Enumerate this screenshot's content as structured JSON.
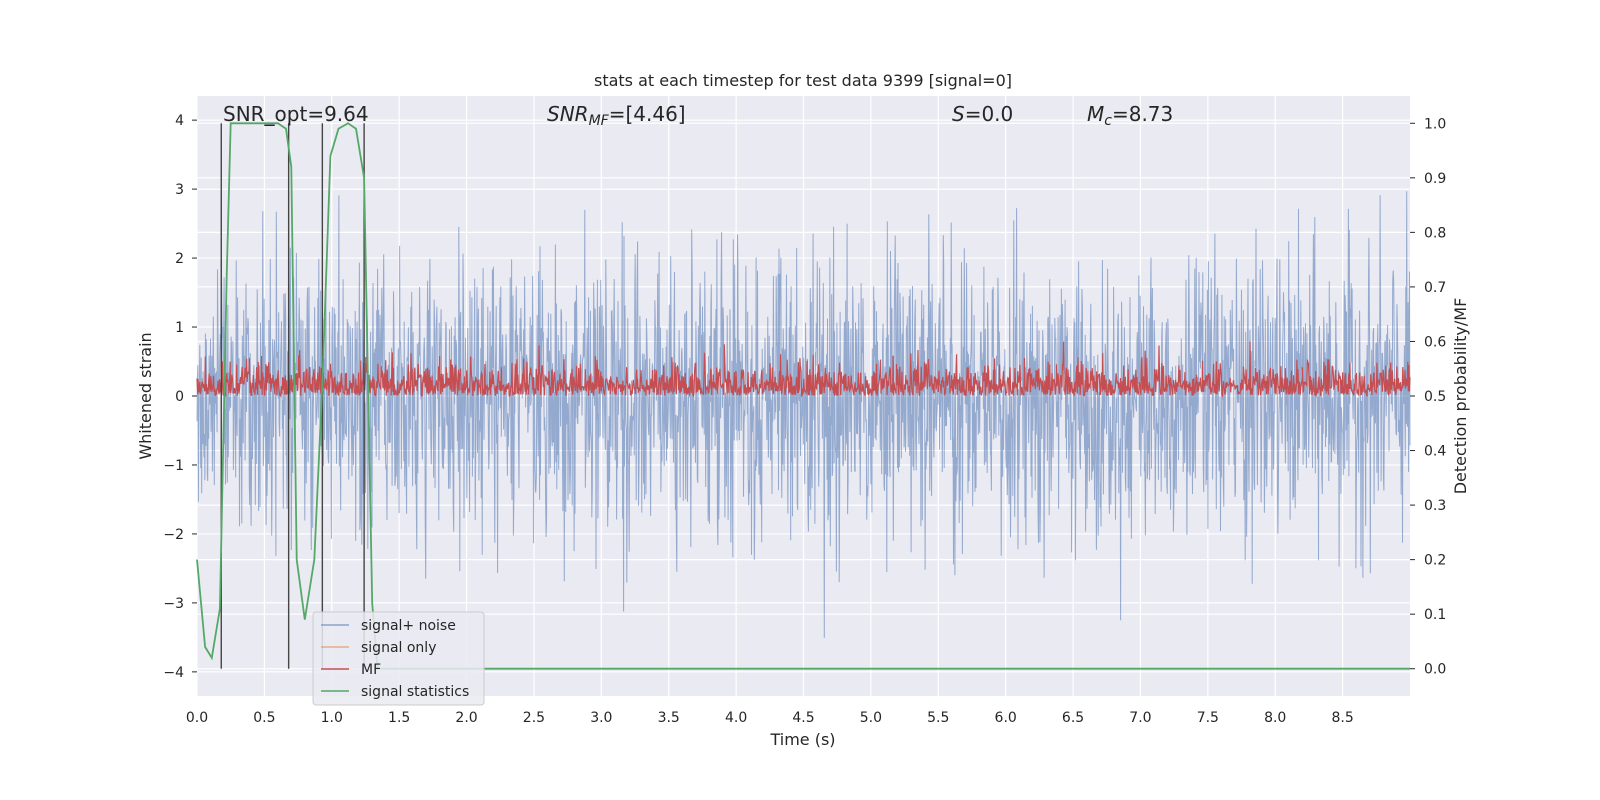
{
  "chart_data": {
    "type": "line",
    "title": "stats at each timestep for test data 9399 [signal=0]",
    "xlabel": "Time (s)",
    "ylabel_left": "Whitened strain",
    "ylabel_right": "Detection probability/MF",
    "xlim": [
      0.0,
      9.0
    ],
    "ylim_left": [
      -4.35,
      4.35
    ],
    "ylim_right": [
      -0.05,
      1.05
    ],
    "xticks": [
      0.0,
      0.5,
      1.0,
      1.5,
      2.0,
      2.5,
      3.0,
      3.5,
      4.0,
      4.5,
      5.0,
      5.5,
      6.0,
      6.5,
      7.0,
      7.5,
      8.0,
      8.5
    ],
    "xtick_labels": [
      "0.0",
      "0.5",
      "1.0",
      "1.5",
      "2.0",
      "2.5",
      "3.0",
      "3.5",
      "4.0",
      "4.5",
      "5.0",
      "5.5",
      "6.0",
      "6.5",
      "7.0",
      "7.5",
      "8.0",
      "8.5"
    ],
    "yticks_left": [
      -4,
      -3,
      -2,
      -1,
      0,
      1,
      2,
      3,
      4
    ],
    "ytick_labels_left": [
      "−4",
      "−3",
      "−2",
      "−1",
      "0",
      "1",
      "2",
      "3",
      "4"
    ],
    "yticks_right": [
      0.0,
      0.1,
      0.2,
      0.3,
      0.4,
      0.5,
      0.6,
      0.7,
      0.8,
      0.9,
      1.0
    ],
    "ytick_labels_right": [
      "0.0",
      "0.1",
      "0.2",
      "0.3",
      "0.4",
      "0.5",
      "0.6",
      "0.7",
      "0.8",
      "0.9",
      "1.0"
    ],
    "grid": true,
    "annotations": {
      "snr_opt": "SNR_opt=9.64",
      "snr_mf_prefix": "SNR",
      "snr_mf_sub": "MF",
      "snr_mf_suffix": "=[4.46]",
      "s_prefix": "S",
      "s_suffix": "=0.0",
      "mc_prefix": "M",
      "mc_sub": "c",
      "mc_suffix": "=8.73"
    },
    "vertical_markers_x": [
      0.18,
      0.68,
      0.93,
      1.24
    ],
    "legend_placement": "lower-left",
    "series": [
      {
        "name": "signal+ noise",
        "color": "#4c72b0",
        "axis": "left",
        "kind": "noise",
        "amplitude_std": 1.0,
        "range": [
          -4.0,
          4.0
        ]
      },
      {
        "name": "signal only",
        "color": "#dd8452",
        "axis": "left",
        "values": []
      },
      {
        "name": "MF",
        "color": "#c44e52",
        "axis": "right",
        "kind": "noise",
        "baseline": 0.5,
        "range": [
          0.5,
          0.63
        ]
      },
      {
        "name": "signal statistics",
        "color": "#55a868",
        "axis": "right",
        "x": [
          0.0,
          0.06,
          0.11,
          0.17,
          0.22,
          0.25,
          0.4,
          0.5,
          0.6,
          0.66,
          0.7,
          0.74,
          0.8,
          0.87,
          0.93,
          0.99,
          1.05,
          1.12,
          1.18,
          1.24,
          1.3,
          1.34,
          1.4,
          9.0
        ],
        "values": [
          0.2,
          0.04,
          0.02,
          0.11,
          0.72,
          1.0,
          1.0,
          1.0,
          1.0,
          0.99,
          0.92,
          0.2,
          0.09,
          0.2,
          0.52,
          0.94,
          0.99,
          1.0,
          0.99,
          0.9,
          0.12,
          0.0,
          0.0,
          0.0
        ]
      }
    ]
  }
}
